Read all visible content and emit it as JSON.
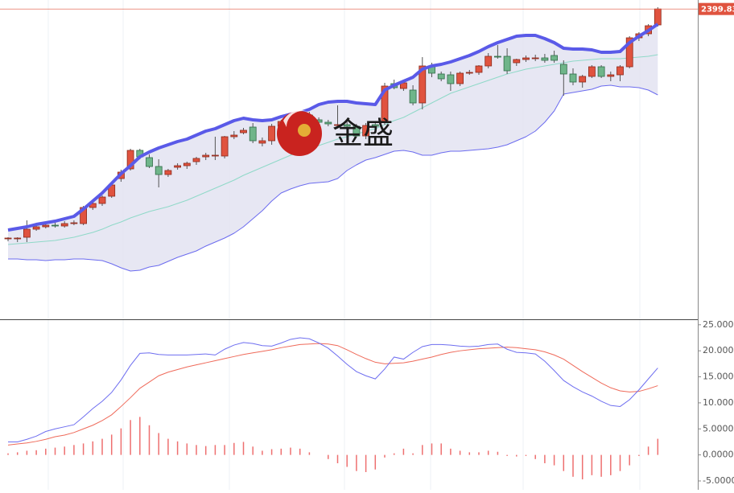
{
  "chart_data": [
    {
      "type": "candlestick",
      "ylim": [
        2014,
        2411
      ],
      "open": [
        2114,
        2114,
        2116,
        2126,
        2129,
        2131,
        2130,
        2133,
        2133,
        2153,
        2158,
        2167,
        2189,
        2201,
        2224,
        2215,
        2204,
        2194,
        2203,
        2205,
        2210,
        2216,
        2218,
        2217,
        2241,
        2246,
        2253,
        2233,
        2236,
        2254,
        2260,
        2265,
        2268,
        2262,
        2259,
        2256,
        2256,
        2254,
        2242,
        2256,
        2260,
        2307,
        2301,
        2299,
        2283,
        2329,
        2319,
        2318,
        2307,
        2320,
        2321,
        2329,
        2341,
        2341,
        2333,
        2337,
        2339,
        2339,
        2342,
        2331,
        2319,
        2309,
        2316,
        2328,
        2316,
        2318,
        2328,
        2364,
        2369,
        2380
      ],
      "high": [
        2116,
        2116,
        2137,
        2132,
        2133,
        2134,
        2136,
        2137,
        2155,
        2161,
        2168,
        2183,
        2200,
        2226,
        2226,
        2219,
        2213,
        2201,
        2208,
        2210,
        2216,
        2221,
        2241,
        2242,
        2248,
        2252,
        2258,
        2240,
        2257,
        2262,
        2267,
        2270,
        2272,
        2265,
        2262,
        2280,
        2260,
        2257,
        2258,
        2260,
        2308,
        2312,
        2310,
        2305,
        2340,
        2333,
        2322,
        2322,
        2322,
        2324,
        2330,
        2345,
        2355,
        2351,
        2338,
        2342,
        2343,
        2344,
        2348,
        2336,
        2326,
        2318,
        2330,
        2330,
        2322,
        2330,
        2366,
        2371,
        2381,
        2402
      ],
      "low": [
        2111,
        2110,
        2110,
        2124,
        2127,
        2128,
        2128,
        2131,
        2131,
        2150,
        2155,
        2165,
        2185,
        2199,
        2213,
        2202,
        2178,
        2191,
        2200,
        2201,
        2206,
        2212,
        2212,
        2214,
        2238,
        2244,
        2233,
        2229,
        2231,
        2250,
        2256,
        2258,
        2260,
        2256,
        2254,
        2252,
        2252,
        2240,
        2238,
        2252,
        2256,
        2300,
        2298,
        2280,
        2275,
        2315,
        2310,
        2298,
        2304,
        2318,
        2318,
        2326,
        2338,
        2319,
        2329,
        2334,
        2335,
        2333,
        2333,
        2292,
        2305,
        2302,
        2314,
        2314,
        2310,
        2310,
        2326,
        2360,
        2366,
        2378
      ],
      "close": [
        2115,
        2115,
        2126,
        2129,
        2131,
        2130,
        2133,
        2134,
        2153,
        2158,
        2166,
        2181,
        2197,
        2224,
        2216,
        2204,
        2194,
        2199,
        2205,
        2208,
        2214,
        2218,
        2218,
        2241,
        2243,
        2249,
        2236,
        2236,
        2254,
        2260,
        2265,
        2263,
        2262,
        2259,
        2257,
        2256,
        2254,
        2242,
        2255,
        2254,
        2304,
        2302,
        2308,
        2283,
        2329,
        2320,
        2313,
        2307,
        2320,
        2321,
        2329,
        2341,
        2340,
        2323,
        2337,
        2339,
        2339,
        2336,
        2336,
        2319,
        2309,
        2316,
        2328,
        2316,
        2318,
        2328,
        2364,
        2369,
        2379,
        2399.83
      ],
      "up_color": "#e0533f",
      "down_color": "#6fb58a",
      "bands": {
        "upper": [
          2125,
          2127,
          2129,
          2132,
          2134,
          2136,
          2139,
          2142,
          2151,
          2161,
          2171,
          2183,
          2195,
          2205,
          2216,
          2222,
          2227,
          2231,
          2235,
          2238,
          2243,
          2248,
          2251,
          2256,
          2261,
          2264,
          2262,
          2261,
          2262,
          2266,
          2269,
          2271,
          2275,
          2281,
          2284,
          2285,
          2285,
          2283,
          2282,
          2281,
          2299,
          2305,
          2310,
          2315,
          2325,
          2329,
          2331,
          2334,
          2338,
          2342,
          2347,
          2353,
          2358,
          2362,
          2366,
          2367,
          2367,
          2363,
          2358,
          2351,
          2350,
          2350,
          2349,
          2346,
          2346,
          2347,
          2358,
          2366,
          2373,
          2381
        ],
        "middle": [
          2107,
          2108,
          2109,
          2110,
          2111,
          2112,
          2114,
          2116,
          2119,
          2122,
          2126,
          2131,
          2135,
          2140,
          2144,
          2148,
          2151,
          2154,
          2158,
          2162,
          2167,
          2172,
          2177,
          2182,
          2187,
          2193,
          2198,
          2203,
          2208,
          2213,
          2218,
          2222,
          2226,
          2230,
          2234,
          2238,
          2241,
          2244,
          2248,
          2251,
          2256,
          2261,
          2265,
          2271,
          2277,
          2283,
          2289,
          2295,
          2299,
          2303,
          2307,
          2311,
          2315,
          2319,
          2322,
          2325,
          2327,
          2329,
          2331,
          2333,
          2335,
          2336,
          2337,
          2338,
          2338,
          2338,
          2339,
          2340,
          2341,
          2343
        ],
        "lower": [
          2089,
          2089,
          2088,
          2088,
          2087,
          2088,
          2088,
          2089,
          2089,
          2088,
          2087,
          2083,
          2078,
          2074,
          2075,
          2079,
          2081,
          2086,
          2091,
          2095,
          2099,
          2105,
          2110,
          2115,
          2121,
          2129,
          2139,
          2149,
          2161,
          2171,
          2176,
          2180,
          2183,
          2184,
          2185,
          2189,
          2199,
          2206,
          2212,
          2215,
          2219,
          2223,
          2224,
          2222,
          2218,
          2218,
          2221,
          2223,
          2223,
          2224,
          2225,
          2226,
          2228,
          2231,
          2236,
          2241,
          2248,
          2259,
          2273,
          2294,
          2296,
          2298,
          2300,
          2304,
          2305,
          2303,
          2303,
          2302,
          2299,
          2293
        ],
        "upper_color": "#5a5ae8",
        "middle_color": "#8fd9c8",
        "lower_color": "#6b6bef",
        "fill_color": "#e3e3f1"
      },
      "last_price": 2399.83,
      "last_price_color": "#e0533f",
      "watermark": "金盛"
    },
    {
      "type": "macd",
      "ylim": [
        -6.7,
        25.9
      ],
      "yticks": [
        {
          "value": 25,
          "label": "25.0000"
        },
        {
          "value": 20,
          "label": "20.0000"
        },
        {
          "value": 15,
          "label": "15.0000"
        },
        {
          "value": 10,
          "label": "10.0000"
        },
        {
          "value": 5,
          "label": "5.0000"
        },
        {
          "value": 0,
          "label": "0.0000"
        },
        {
          "value": -5,
          "label": "-5.0000"
        }
      ],
      "dif": [
        2.5,
        2.5,
        3.0,
        3.6,
        4.5,
        5.0,
        5.4,
        5.8,
        7.3,
        8.9,
        10.3,
        12.0,
        14.4,
        17.2,
        19.5,
        19.6,
        19.3,
        19.2,
        19.2,
        19.2,
        19.3,
        19.4,
        19.2,
        20.3,
        21.1,
        21.6,
        21.4,
        21.0,
        20.9,
        21.5,
        22.2,
        22.5,
        22.3,
        21.5,
        20.5,
        19.0,
        17.4,
        16.0,
        15.2,
        14.6,
        16.5,
        18.8,
        18.4,
        19.7,
        20.8,
        21.2,
        21.2,
        21.1,
        20.9,
        20.8,
        20.9,
        21.2,
        21.3,
        20.3,
        19.7,
        19.6,
        19.4,
        18.0,
        16.2,
        14.3,
        13.1,
        12.1,
        11.3,
        10.3,
        9.5,
        9.3,
        10.6,
        12.5,
        14.6,
        16.7
      ],
      "dea": [
        1.9,
        2.1,
        2.3,
        2.6,
        3.0,
        3.5,
        3.8,
        4.3,
        5.0,
        5.7,
        6.6,
        7.7,
        9.3,
        11.0,
        12.8,
        14.0,
        15.2,
        15.9,
        16.4,
        16.9,
        17.3,
        17.7,
        18.1,
        18.5,
        18.9,
        19.3,
        19.6,
        19.9,
        20.2,
        20.6,
        20.9,
        21.2,
        21.3,
        21.4,
        21.3,
        21.0,
        20.2,
        19.3,
        18.5,
        17.8,
        17.5,
        17.6,
        17.7,
        18.0,
        18.4,
        18.8,
        19.3,
        19.7,
        20.0,
        20.2,
        20.4,
        20.5,
        20.6,
        20.7,
        20.6,
        20.4,
        20.2,
        19.8,
        19.2,
        18.4,
        17.2,
        16.0,
        14.9,
        13.8,
        12.9,
        12.3,
        12.1,
        12.2,
        12.7,
        13.3
      ],
      "hist": [
        0.3,
        0.5,
        0.8,
        0.9,
        1.2,
        1.4,
        1.6,
        1.9,
        2.2,
        2.6,
        3.1,
        3.9,
        5.1,
        6.7,
        7.3,
        5.7,
        4.2,
        3.1,
        2.6,
        2.2,
        1.9,
        1.7,
        1.9,
        1.9,
        2.3,
        2.5,
        1.6,
        0.8,
        1.1,
        1.2,
        1.4,
        1.2,
        0.5,
        0,
        -0.8,
        -1.6,
        -2.3,
        -3.1,
        -3.3,
        -2.8,
        -0.5,
        0.3,
        1.2,
        0.3,
        1.9,
        2.2,
        2.2,
        1.2,
        0.8,
        0.5,
        0.5,
        0.8,
        0.6,
        -0.2,
        -0.3,
        -0.2,
        -0.8,
        -1.6,
        -2.0,
        -3.1,
        -4.2,
        -4.7,
        -3.9,
        -4.2,
        -3.9,
        -3.1,
        -2.0,
        -0.2,
        1.6,
        3.1
      ],
      "dif_color": "#6e6ef0",
      "dea_color": "#ef6a5a",
      "hist_color": "#ee6f6f"
    }
  ]
}
